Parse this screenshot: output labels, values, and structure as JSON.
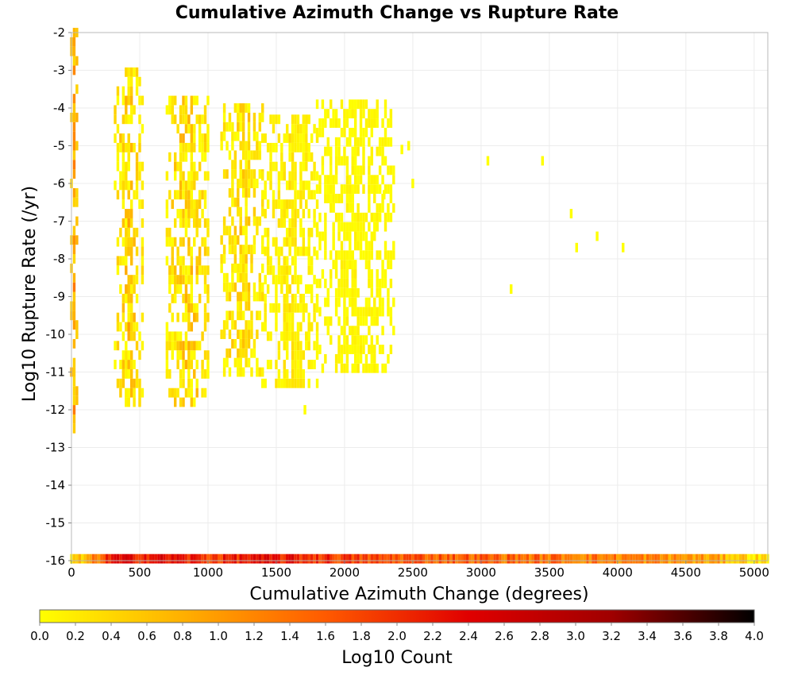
{
  "chart_data": {
    "type": "heatmap",
    "title": "Cumulative Azimuth Change vs Rupture Rate",
    "xlabel": "Cumulative Azimuth Change (degrees)",
    "ylabel": "Log10 Rupture Rate (/yr)",
    "xlim": [
      0,
      5100
    ],
    "ylim": [
      -16,
      -2
    ],
    "x_ticks": [
      "0",
      "500",
      "1000",
      "1500",
      "2000",
      "2500",
      "3000",
      "3500",
      "4000",
      "4500",
      "5000"
    ],
    "y_ticks": [
      "-2",
      "-3",
      "-4",
      "-5",
      "-6",
      "-7",
      "-8",
      "-9",
      "-10",
      "-11",
      "-12",
      "-13",
      "-14",
      "-15",
      "-16"
    ],
    "grid": true,
    "cell_size": {
      "x": 20,
      "y": 0.25
    },
    "colorbar": {
      "label": "Log10 Count",
      "range": [
        0,
        4
      ],
      "ticks": [
        "0.0",
        "0.2",
        "0.4",
        "0.6",
        "0.8",
        "1.0",
        "1.2",
        "1.4",
        "1.6",
        "1.8",
        "2.0",
        "2.2",
        "2.4",
        "2.6",
        "2.8",
        "3.0",
        "3.2",
        "3.4",
        "3.6",
        "3.8",
        "4.0"
      ],
      "colors": [
        "#ffff00",
        "#ffb000",
        "#ff5a00",
        "#e00000",
        "#a00000",
        "#000000"
      ]
    },
    "clusters": [
      {
        "x": [
          0,
          40
        ],
        "y": [
          -12.5,
          -2.0
        ],
        "log10_count": [
          0.4,
          1.4
        ]
      },
      {
        "x": [
          320,
          520
        ],
        "y": [
          -11.8,
          -3.0
        ],
        "log10_count": [
          0.0,
          1.0
        ]
      },
      {
        "x": [
          700,
          1000
        ],
        "y": [
          -11.8,
          -3.8
        ],
        "log10_count": [
          0.0,
          1.0
        ]
      },
      {
        "x": [
          1100,
          1400
        ],
        "y": [
          -11.0,
          -4.0
        ],
        "log10_count": [
          0.0,
          0.8
        ]
      },
      {
        "x": [
          1400,
          1800
        ],
        "y": [
          -11.3,
          -4.3
        ],
        "log10_count": [
          0.0,
          0.4
        ]
      },
      {
        "x": [
          1800,
          2350
        ],
        "y": [
          -10.9,
          -4.0
        ],
        "log10_count": [
          0.0,
          0.2
        ]
      }
    ],
    "isolated_points": [
      {
        "x": 2420,
        "y": -5.1,
        "log10_count": 0
      },
      {
        "x": 2470,
        "y": -5.0,
        "log10_count": 0
      },
      {
        "x": 2500,
        "y": -6.0,
        "log10_count": 0
      },
      {
        "x": 2290,
        "y": -6.3,
        "log10_count": 0
      },
      {
        "x": 3050,
        "y": -5.4,
        "log10_count": 0
      },
      {
        "x": 3450,
        "y": -5.4,
        "log10_count": 0
      },
      {
        "x": 3660,
        "y": -6.8,
        "log10_count": 0
      },
      {
        "x": 3850,
        "y": -7.4,
        "log10_count": 0
      },
      {
        "x": 3700,
        "y": -7.7,
        "log10_count": 0
      },
      {
        "x": 4040,
        "y": -7.7,
        "log10_count": 0
      },
      {
        "x": 3220,
        "y": -8.8,
        "log10_count": 0
      },
      {
        "x": 1710,
        "y": -12.0,
        "log10_count": 0
      }
    ],
    "bottom_row": {
      "y": -16,
      "x_range": [
        0,
        5100
      ],
      "log10_count_profile": [
        {
          "x": 0,
          "v": 0.2
        },
        {
          "x": 100,
          "v": 0.6
        },
        {
          "x": 300,
          "v": 2.2
        },
        {
          "x": 700,
          "v": 2.3
        },
        {
          "x": 1000,
          "v": 1.9
        },
        {
          "x": 1300,
          "v": 2.2
        },
        {
          "x": 1700,
          "v": 2.1
        },
        {
          "x": 2200,
          "v": 1.7
        },
        {
          "x": 2800,
          "v": 1.6
        },
        {
          "x": 3500,
          "v": 1.4
        },
        {
          "x": 4200,
          "v": 1.2
        },
        {
          "x": 4700,
          "v": 0.9
        },
        {
          "x": 5100,
          "v": 0.2
        }
      ]
    }
  }
}
